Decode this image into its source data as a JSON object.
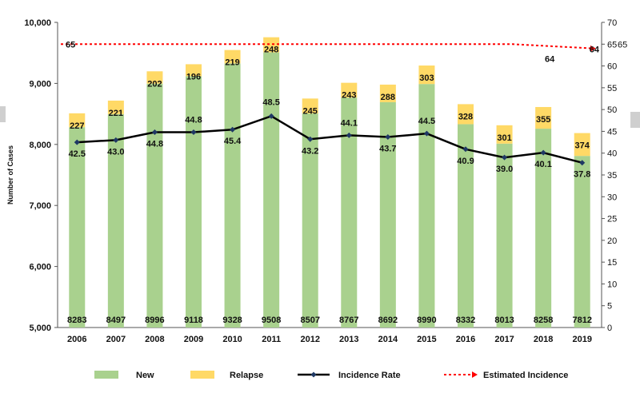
{
  "chart_data": {
    "type": "bar+line",
    "title": "",
    "xlabel": "",
    "ylabel": "Number of Cases",
    "ylim": [
      5000,
      10000
    ],
    "y_ticks": [
      "5,000",
      "6,000",
      "7,000",
      "8,000",
      "9,000",
      "10,000"
    ],
    "y2lim": [
      0,
      70
    ],
    "y2_ticks": [
      "0",
      "5",
      "10",
      "15",
      "20",
      "25",
      "30",
      "35",
      "40",
      "45",
      "50",
      "55",
      "60",
      "65",
      "70"
    ],
    "categories": [
      "2006",
      "2007",
      "2008",
      "2009",
      "2010",
      "2011",
      "2012",
      "2013",
      "2014",
      "2015",
      "2016",
      "2017",
      "2018",
      "2019"
    ],
    "series": [
      {
        "name": "New",
        "type": "stacked-bar",
        "axis": "left",
        "color": "#a9d18e",
        "values": [
          8283,
          8497,
          8996,
          9118,
          9328,
          9508,
          8507,
          8767,
          8692,
          8990,
          8332,
          8013,
          8258,
          7812
        ]
      },
      {
        "name": "Relapse",
        "type": "stacked-bar",
        "axis": "left",
        "color": "#ffd966",
        "values": [
          227,
          221,
          202,
          196,
          219,
          248,
          245,
          243,
          288,
          303,
          328,
          301,
          355,
          374
        ]
      },
      {
        "name": "Incidence Rate",
        "type": "line",
        "axis": "right",
        "color": "#000000",
        "values": [
          42.5,
          43.0,
          44.8,
          44.8,
          45.4,
          48.5,
          43.2,
          44.1,
          43.7,
          44.5,
          40.9,
          39.0,
          40.1,
          37.8
        ]
      },
      {
        "name": "Estimated Incidence",
        "type": "dashed-line",
        "axis": "right",
        "color": "#ff0000",
        "start_value": 65,
        "end_value": 64
      }
    ],
    "annotations": {
      "estimated_start_label": "65",
      "estimated_end_label": "64",
      "estimated_right_label": "64",
      "right_axis_extra": "65"
    },
    "legend": {
      "position": "bottom",
      "items": [
        "New",
        "Relapse",
        "Incidence Rate",
        "Estimated Incidence"
      ]
    }
  }
}
